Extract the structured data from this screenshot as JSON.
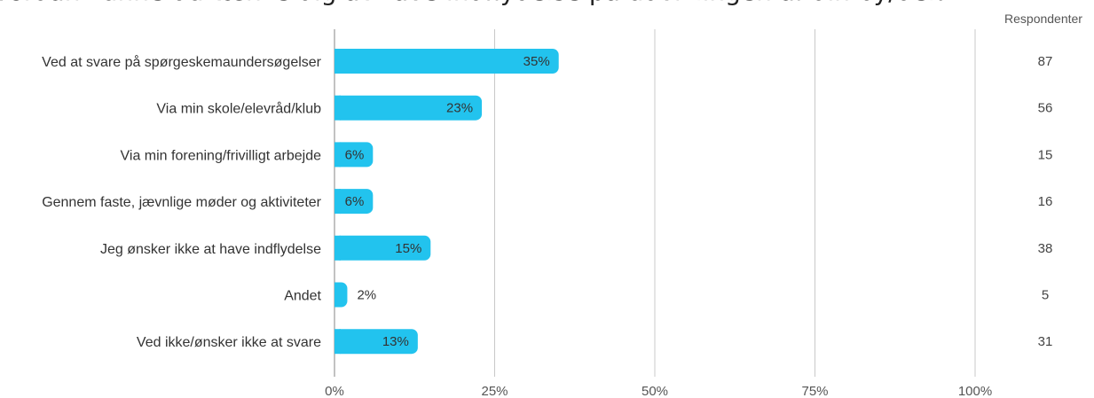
{
  "chart_data": {
    "type": "bar",
    "orientation": "horizontal",
    "title": "Hvordan kunne du tænke dig at have indflydelse på udviklingen af din by/del?",
    "categories": [
      "Ved at svare på spørgeskemaundersøgelser",
      "Via min skole/elevråd/klub",
      "Via min forening/frivilligt arbejde",
      "Gennem faste, jævnlige møder og aktiviteter",
      "Jeg ønsker ikke at have indflydelse",
      "Andet",
      "Ved ikke/ønsker ikke at svare"
    ],
    "values": [
      35,
      23,
      6,
      6,
      15,
      2,
      13
    ],
    "value_labels": [
      "35%",
      "23%",
      "6%",
      "6%",
      "15%",
      "2%",
      "13%"
    ],
    "respondents_header": "Respondenter",
    "respondents": [
      87,
      56,
      15,
      16,
      38,
      5,
      31
    ],
    "xlim": [
      0,
      100
    ],
    "xticks": [
      "0%",
      "25%",
      "50%",
      "75%",
      "100%"
    ],
    "grid": true,
    "colors": {
      "bar": "#22c3ee",
      "grid": "#c8c8c8",
      "axis": "#999999"
    }
  }
}
